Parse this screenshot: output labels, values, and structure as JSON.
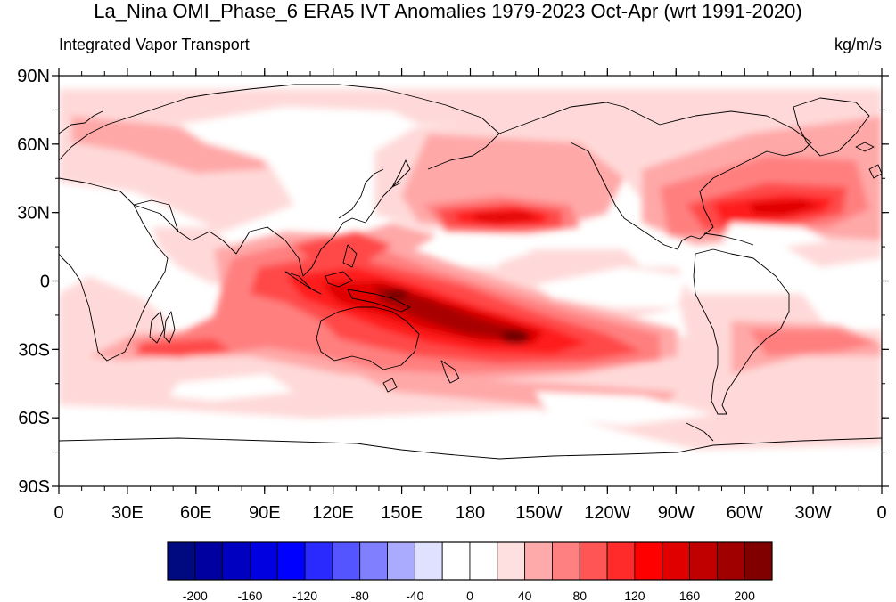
{
  "title": "La_Nina OMI_Phase_6 ERA5 IVT Anomalies 1979-2023 Oct-Apr (wrt 1991-2020)",
  "left_label": "Integrated Vapor Transport",
  "right_label": "kg/m/s",
  "axes": {
    "lat_labels": [
      "90N",
      "60N",
      "30N",
      "0",
      "30S",
      "60S",
      "90S"
    ],
    "lon_labels": [
      "0",
      "30E",
      "60E",
      "90E",
      "120E",
      "150E",
      "180",
      "150W",
      "120W",
      "90W",
      "60W",
      "30W",
      "0"
    ]
  },
  "colorbar": {
    "colors": [
      "#000a80",
      "#0000a0",
      "#0000c0",
      "#0000e0",
      "#0000ff",
      "#2a2aff",
      "#5555ff",
      "#8080ff",
      "#aaaaff",
      "#e0e0ff",
      "#ffffff",
      "#ffffff",
      "#ffe0e0",
      "#ffaaaa",
      "#ff8080",
      "#ff5555",
      "#ff2a2a",
      "#ff0000",
      "#e00000",
      "#c00000",
      "#a00000",
      "#800000"
    ],
    "tick_labels": [
      "-200",
      "-160",
      "-120",
      "-80",
      "-40",
      "0",
      "40",
      "80",
      "120",
      "160",
      "200"
    ],
    "tick_values": [
      -200,
      -160,
      -120,
      -80,
      -40,
      0,
      40,
      80,
      120,
      160,
      200
    ],
    "range": [
      -220,
      220
    ]
  },
  "colors": {
    "light": "#ffd9d9",
    "medium": "#ffa8a8",
    "med2": "#ff7f7f",
    "strong": "#ff4a4a",
    "stronger": "#ff1a1a",
    "intense": "#e00000",
    "deep": "#a80000",
    "darkest": "#6e0000"
  }
}
